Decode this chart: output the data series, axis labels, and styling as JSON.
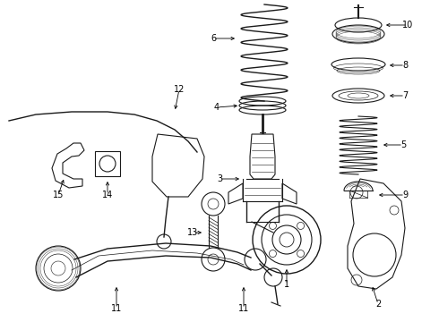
{
  "bg_color": "#ffffff",
  "line_color": "#1a1a1a",
  "label_color": "#000000",
  "label_fontsize": 7.0,
  "figsize": [
    4.9,
    3.6
  ],
  "dpi": 100
}
